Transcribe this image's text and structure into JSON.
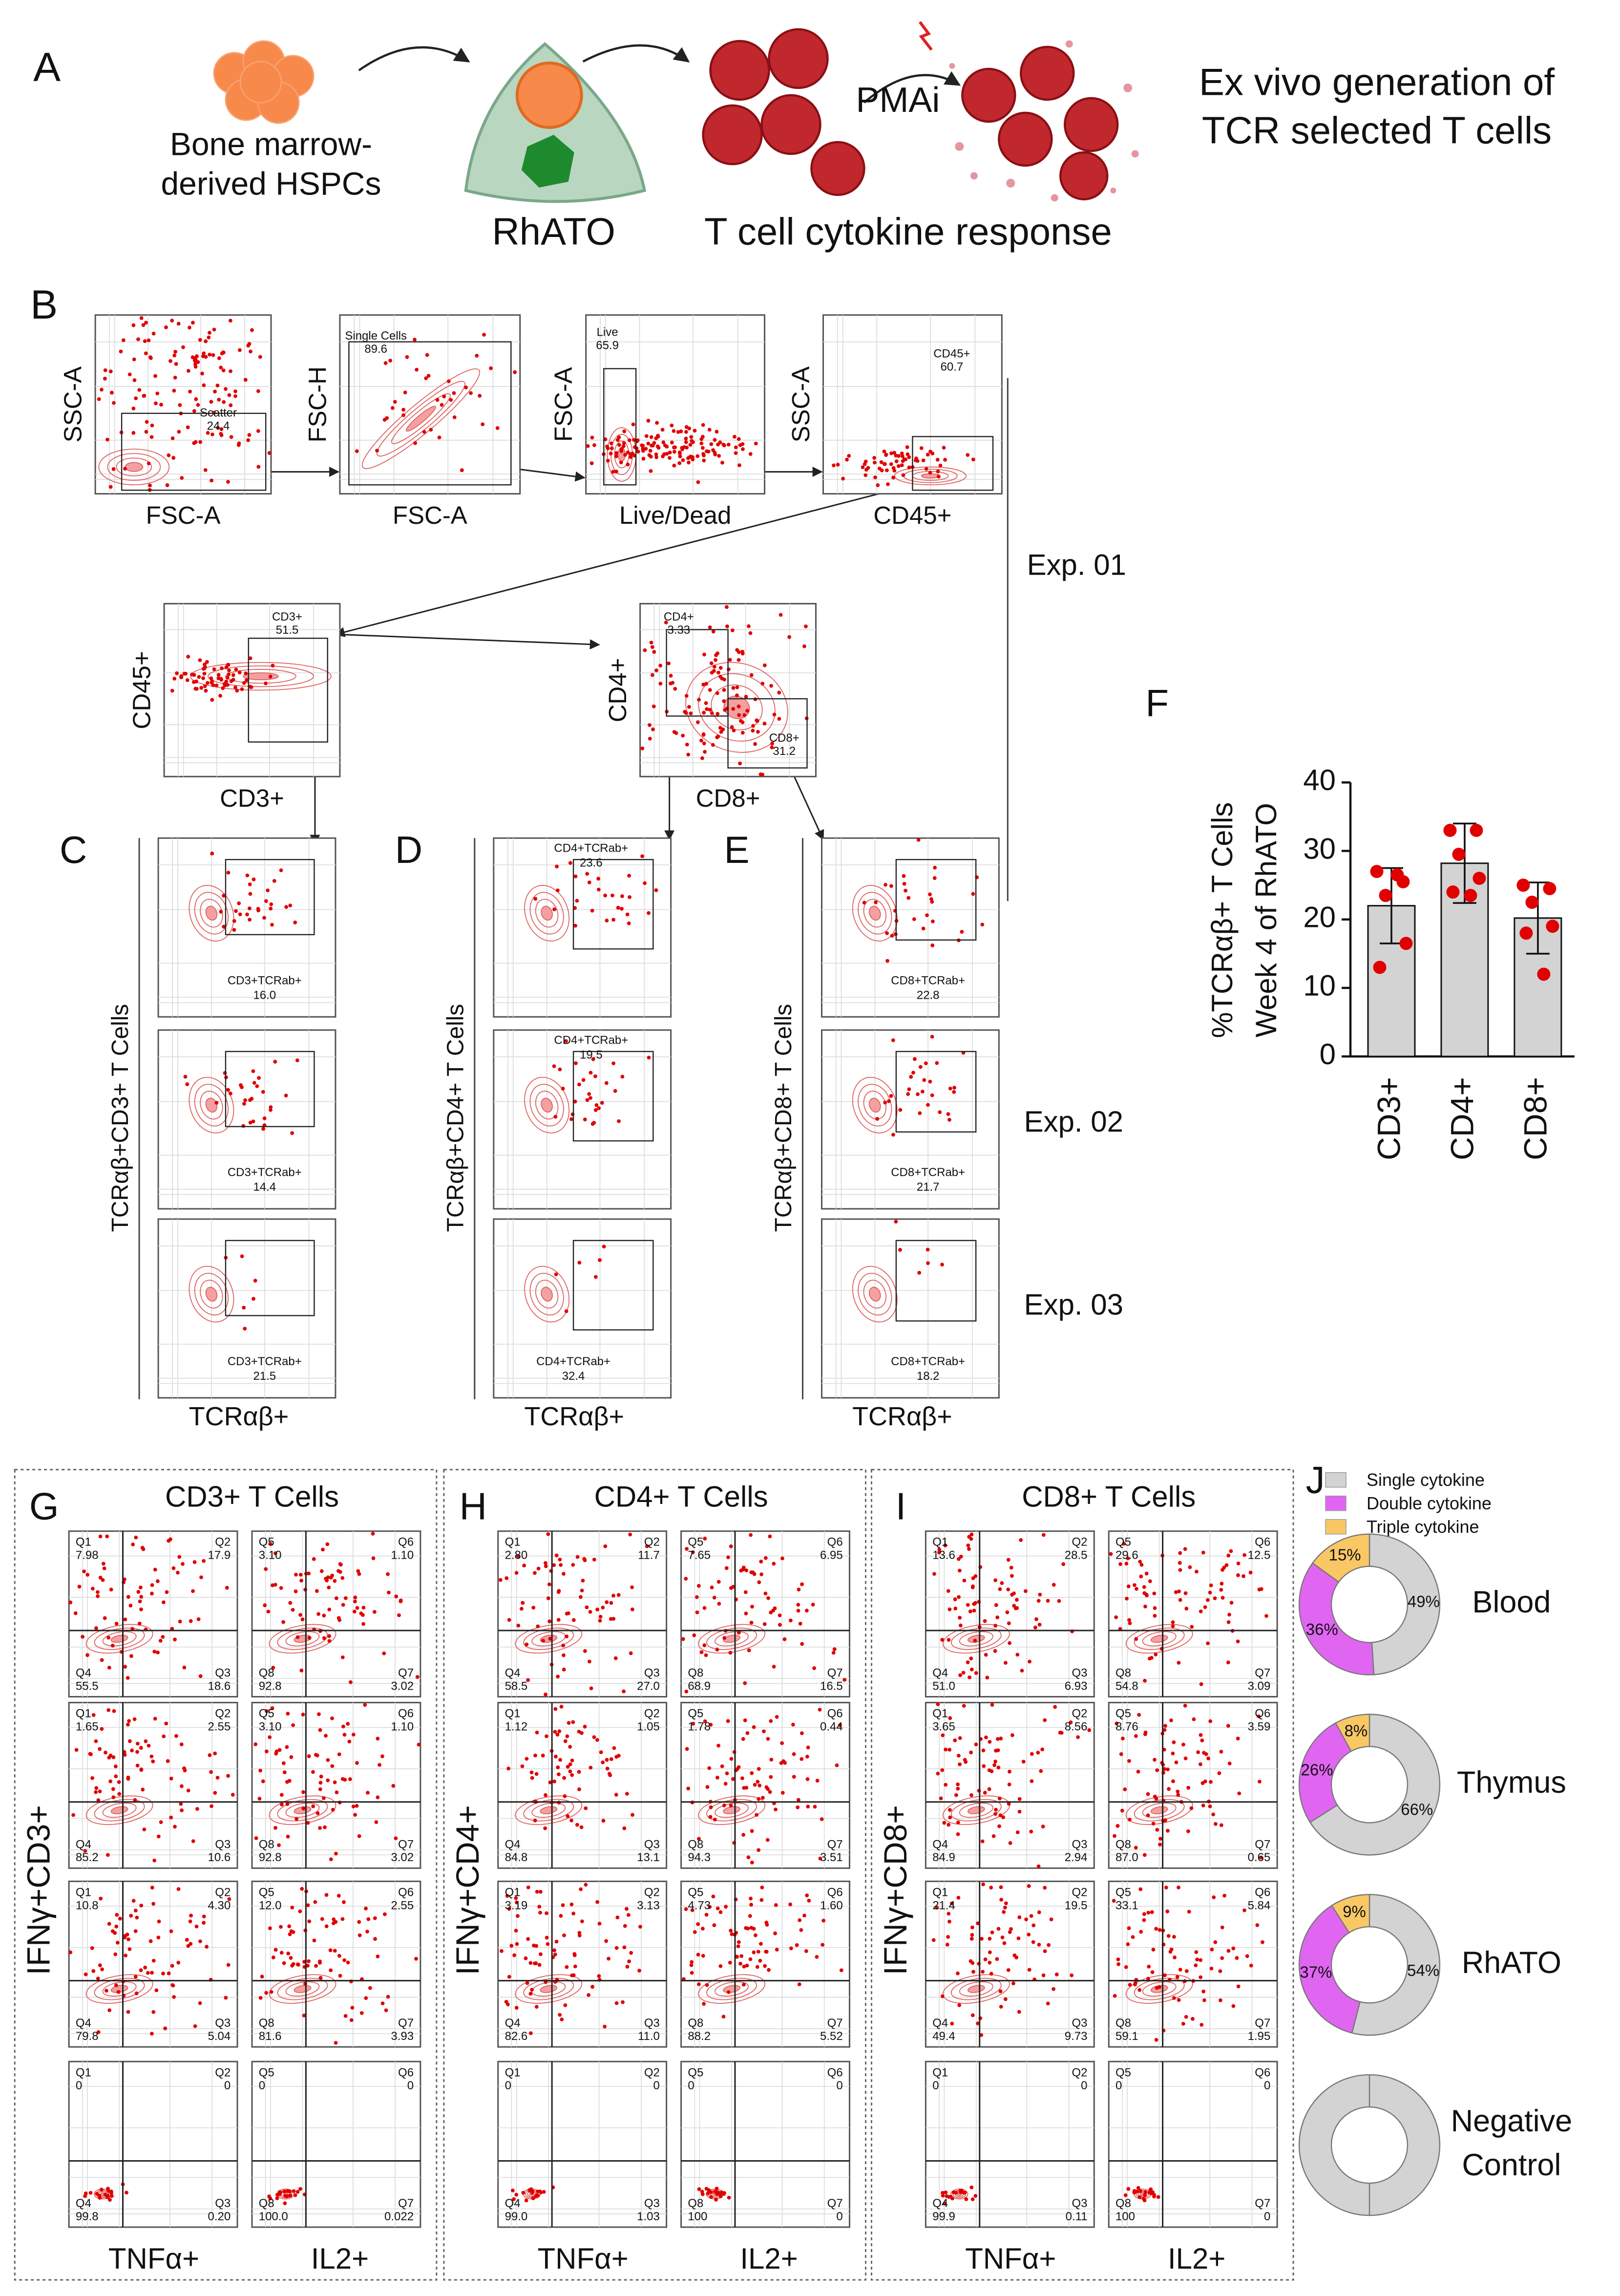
{
  "panel_a": {
    "label": "A",
    "source_lines": [
      "Bone marrow-",
      "derived HSPCs"
    ],
    "organoid": "RhATO",
    "stimulus": "PMAi",
    "readout": "T cell cytokine response",
    "summary_lines": [
      "Ex vivo generation of",
      "TCR selected T cells"
    ]
  },
  "panel_b": {
    "label": "B",
    "plots": [
      {
        "y_label": "SSC-A",
        "x_label": "FSC-A",
        "gates": [
          {
            "name": "Scatter",
            "value": "24.4"
          }
        ]
      },
      {
        "y_label": "FSC-H",
        "x_label": "FSC-A",
        "gates": [
          {
            "name": "Single Cells",
            "value": "89.6"
          }
        ]
      },
      {
        "y_label": "FSC-A",
        "x_label": "Live/Dead",
        "gates": [
          {
            "name": "Live",
            "value": "65.9"
          }
        ]
      },
      {
        "y_label": "SSC-A",
        "x_label": "CD45+",
        "gates": [
          {
            "name": "CD45+",
            "value": "60.7"
          }
        ]
      },
      {
        "y_label": "CD45+",
        "x_label": "CD3+",
        "gates": [
          {
            "name": "CD3+",
            "value": "51.5"
          }
        ]
      },
      {
        "y_label": "CD4+",
        "x_label": "CD8+",
        "gates": [
          {
            "name": "CD4+",
            "value": "3.33"
          },
          {
            "name": "CD8+",
            "value": "31.2"
          }
        ]
      }
    ],
    "experiments": [
      "Exp. 01",
      "Exp. 02",
      "Exp. 03"
    ]
  },
  "tcr_panels": [
    {
      "label": "C",
      "y_label": "TCRαβ+CD3+ T Cells",
      "x_label": "TCRαβ+",
      "gate": "CD3+TCRab+",
      "values": [
        "16.0",
        "14.4",
        "21.5"
      ]
    },
    {
      "label": "D",
      "y_label": "TCRαβ+CD4+ T Cells",
      "x_label": "TCRαβ+",
      "gate": "CD4+TCRab+",
      "values": [
        "23.6",
        "19.5",
        "32.4"
      ]
    },
    {
      "label": "E",
      "y_label": "TCRαβ+CD8+ T Cells",
      "x_label": "TCRαβ+",
      "gate": "CD8+TCRab+",
      "values": [
        "22.8",
        "21.7",
        "18.2"
      ]
    }
  ],
  "quadrant_names": [
    [
      "Q1",
      "Q2",
      "Q4",
      "Q3"
    ],
    [
      "Q5",
      "Q6",
      "Q8",
      "Q7"
    ]
  ],
  "cytokine_panels": [
    {
      "label": "G",
      "title": "CD3+ T Cells",
      "y_label": "IFNγ+CD3+",
      "x_labels": [
        "TNFα+",
        "IL2+"
      ],
      "rows": [
        [
          [
            "7.98",
            "17.9",
            "55.5",
            "18.6"
          ],
          [
            "3.10",
            "1.10",
            "92.8",
            "3.02"
          ]
        ],
        [
          [
            "1.65",
            "2.55",
            "85.2",
            "10.6"
          ],
          [
            "3.10",
            "1.10",
            "92.8",
            "3.02"
          ]
        ],
        [
          [
            "10.8",
            "4.30",
            "79.8",
            "5.04"
          ],
          [
            "12.0",
            "2.55",
            "81.6",
            "3.93"
          ]
        ],
        [
          [
            "0",
            "0",
            "99.8",
            "0.20"
          ],
          [
            "0",
            "0",
            "100.0",
            "0.022"
          ]
        ]
      ]
    },
    {
      "label": "H",
      "title": "CD4+ T Cells",
      "y_label": "IFNγ+CD4+",
      "x_labels": [
        "TNFα+",
        "IL2+"
      ],
      "rows": [
        [
          [
            "2.80",
            "11.7",
            "58.5",
            "27.0"
          ],
          [
            "7.65",
            "6.95",
            "68.9",
            "16.5"
          ]
        ],
        [
          [
            "1.12",
            "1.05",
            "84.8",
            "13.1"
          ],
          [
            "1.78",
            "0.44",
            "94.3",
            "3.51"
          ]
        ],
        [
          [
            "3.19",
            "3.13",
            "82.6",
            "11.0"
          ],
          [
            "4.73",
            "1.60",
            "88.2",
            "5.52"
          ]
        ],
        [
          [
            "0",
            "0",
            "99.0",
            "1.03"
          ],
          [
            "0",
            "0",
            "100",
            "0"
          ]
        ]
      ]
    },
    {
      "label": "I",
      "title": "CD8+ T Cells",
      "y_label": "IFNγ+CD8+",
      "x_labels": [
        "TNFα+",
        "IL2+"
      ],
      "rows": [
        [
          [
            "13.6",
            "28.5",
            "51.0",
            "6.93"
          ],
          [
            "29.6",
            "12.5",
            "54.8",
            "3.09"
          ]
        ],
        [
          [
            "3.65",
            "8.56",
            "84.9",
            "2.94"
          ],
          [
            "8.76",
            "3.59",
            "87.0",
            "0.65"
          ]
        ],
        [
          [
            "21.4",
            "19.5",
            "49.4",
            "9.73"
          ],
          [
            "33.1",
            "5.84",
            "59.1",
            "1.95"
          ]
        ],
        [
          [
            "0",
            "0",
            "99.9",
            "0.11"
          ],
          [
            "0",
            "0",
            "100",
            "0"
          ]
        ]
      ]
    }
  ],
  "chart_data": [
    {
      "type": "bar",
      "label": "F",
      "y_label_lines": [
        "%TCRαβ+ T Cells",
        "Week 4 of RhATO"
      ],
      "categories": [
        "CD3+",
        "CD4+",
        "CD8+"
      ],
      "values": [
        22,
        28.2,
        20.2
      ],
      "errors": [
        5.5,
        5.8,
        5.2
      ],
      "points": [
        [
          27,
          25.5,
          23.5,
          16.5,
          13,
          26.5
        ],
        [
          33,
          33,
          29.5,
          26,
          24,
          23.5
        ],
        [
          25,
          24.5,
          22.5,
          19,
          18,
          12
        ]
      ],
      "ylim": [
        0,
        40
      ],
      "yticks": [
        0,
        10,
        20,
        30,
        40
      ],
      "color": "#d3d3d3",
      "point_color": "#e00000"
    },
    {
      "type": "donut",
      "label": "J",
      "categories": [
        "Single cytokine",
        "Double cytokine",
        "Triple cytokine"
      ],
      "colors": [
        "#d3d3d3",
        "#e066f2",
        "#f9c865"
      ],
      "series": [
        {
          "name_lines": [
            "Blood"
          ],
          "values": [
            49,
            36,
            15
          ],
          "value_labels": [
            "49%",
            "36%",
            "15%"
          ]
        },
        {
          "name_lines": [
            "Thymus"
          ],
          "values": [
            66,
            26,
            8
          ],
          "value_labels": [
            "66%",
            "26%",
            "8%"
          ]
        },
        {
          "name_lines": [
            "RhATO"
          ],
          "values": [
            54,
            37,
            9
          ],
          "value_labels": [
            "54%",
            "37%",
            "9%"
          ]
        },
        {
          "name_lines": [
            "Negative",
            "Control"
          ],
          "values": [
            100,
            0,
            0
          ]
        }
      ]
    }
  ]
}
